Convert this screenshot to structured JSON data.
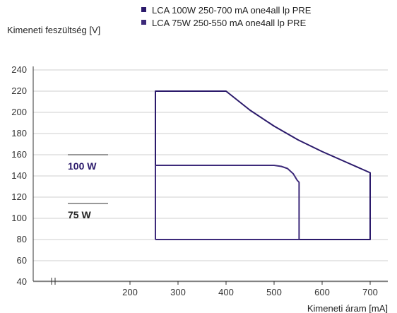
{
  "chart_data": {
    "type": "line",
    "ylabel": "Kimeneti feszültség [V]",
    "xlabel": "Kimeneti áram [mA]",
    "ylim": [
      20,
      240
    ],
    "xlim": [
      100,
      750
    ],
    "yticks": [
      40,
      60,
      80,
      100,
      120,
      140,
      160,
      180,
      200,
      220,
      240
    ],
    "xticks": [
      200,
      300,
      400,
      500,
      600,
      700
    ],
    "x_axis_break": true,
    "grid": "horizontal",
    "legend_position": "top",
    "series": [
      {
        "name": "LCA 100W 250-700 mA one4all lp PRE",
        "color": "#2b1a6b",
        "points": [
          [
            253,
            80
          ],
          [
            253,
            220
          ],
          [
            400,
            220
          ],
          [
            450,
            202
          ],
          [
            500,
            187
          ],
          [
            550,
            174
          ],
          [
            600,
            163
          ],
          [
            650,
            153
          ],
          [
            700,
            143
          ],
          [
            700,
            80
          ],
          [
            253,
            80
          ]
        ]
      },
      {
        "name": "LCA 75W 250-550 mA one4all lp PRE",
        "color": "#3d2a7a",
        "points": [
          [
            253,
            80
          ],
          [
            253,
            150
          ],
          [
            500,
            150
          ],
          [
            515,
            149
          ],
          [
            528,
            147
          ],
          [
            540,
            142
          ],
          [
            548,
            136
          ],
          [
            552,
            134
          ],
          [
            552,
            80
          ],
          [
            253,
            80
          ]
        ]
      }
    ],
    "annotations": [
      {
        "text": "100 W",
        "y": 160,
        "color": "#2b1a6b"
      },
      {
        "text": "75 W",
        "y": 114,
        "color": "#222222"
      }
    ]
  }
}
